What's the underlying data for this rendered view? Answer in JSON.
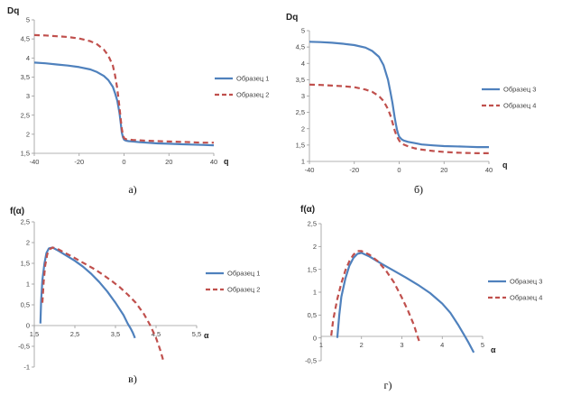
{
  "panels": [
    {
      "caption": "а)",
      "chart_data": {
        "type": "line",
        "ylabel": "Dq",
        "xlabel": "q",
        "xlim": [
          -40,
          40
        ],
        "ylim": [
          1.5,
          5
        ],
        "xticks": [
          -40,
          -20,
          0,
          20,
          40
        ],
        "yticks": [
          1.5,
          2,
          2.5,
          3,
          3.5,
          4,
          4.5,
          5
        ],
        "ytick_labels": [
          "1,5",
          "2",
          "2,5",
          "3",
          "3,5",
          "4",
          "4,5",
          "5"
        ],
        "grid": false,
        "legend_position": "right",
        "series": [
          {
            "name": "Образец 1",
            "color": "#4f81bd",
            "dash": "solid",
            "x": [
              -40,
              -35,
              -30,
              -25,
              -20,
              -15,
              -12,
              -9,
              -7,
              -5,
              -4,
              -3,
              -2,
              -1.5,
              -1,
              -0.5,
              0,
              0.5,
              1,
              2,
              4,
              7,
              10,
              15,
              20,
              25,
              30,
              35,
              40
            ],
            "y": [
              3.88,
              3.86,
              3.83,
              3.8,
              3.76,
              3.7,
              3.63,
              3.53,
              3.42,
              3.24,
              3.08,
              2.88,
              2.55,
              2.3,
              2.05,
              1.92,
              1.86,
              1.84,
              1.83,
              1.82,
              1.81,
              1.79,
              1.78,
              1.76,
              1.75,
              1.74,
              1.73,
              1.72,
              1.71
            ]
          },
          {
            "name": "Образец 2",
            "color": "#c0504d",
            "dash": "dashed",
            "x": [
              -40,
              -35,
              -30,
              -25,
              -20,
              -15,
              -12,
              -9,
              -7,
              -5,
              -4,
              -3,
              -2,
              -1.5,
              -1,
              -0.5,
              0,
              0.5,
              1,
              2,
              4,
              7,
              10,
              15,
              20,
              25,
              30,
              35,
              40
            ],
            "y": [
              4.6,
              4.59,
              4.57,
              4.55,
              4.51,
              4.44,
              4.36,
              4.22,
              4.06,
              3.8,
              3.55,
              3.2,
              2.7,
              2.4,
              2.15,
              1.98,
              1.9,
              1.88,
              1.87,
              1.86,
              1.85,
              1.84,
              1.83,
              1.82,
              1.81,
              1.8,
              1.79,
              1.78,
              1.78
            ]
          }
        ]
      }
    },
    {
      "caption": "б)",
      "chart_data": {
        "type": "line",
        "ylabel": "Dq",
        "xlabel": "q",
        "xlim": [
          -40,
          40
        ],
        "ylim": [
          1,
          5
        ],
        "xticks": [
          -40,
          -20,
          0,
          20,
          40
        ],
        "yticks": [
          1,
          1.5,
          2,
          2.5,
          3,
          3.5,
          4,
          4.5,
          5
        ],
        "ytick_labels": [
          "1",
          "1,5",
          "2",
          "2,5",
          "3",
          "3,5",
          "4",
          "4,5",
          "5"
        ],
        "grid": false,
        "legend_position": "right",
        "series": [
          {
            "name": "Образец 3",
            "color": "#4f81bd",
            "dash": "solid",
            "x": [
              -40,
              -35,
              -30,
              -25,
              -20,
              -15,
              -12,
              -9,
              -7,
              -5,
              -4,
              -3,
              -2,
              -1.5,
              -1,
              -0.5,
              0,
              0.5,
              1,
              2,
              4,
              7,
              10,
              15,
              20,
              25,
              30,
              35,
              40
            ],
            "y": [
              4.66,
              4.65,
              4.63,
              4.6,
              4.56,
              4.48,
              4.38,
              4.2,
              3.95,
              3.5,
              3.15,
              2.8,
              2.35,
              2.15,
              1.98,
              1.85,
              1.76,
              1.72,
              1.68,
              1.64,
              1.6,
              1.56,
              1.52,
              1.49,
              1.47,
              1.46,
              1.45,
              1.44,
              1.44
            ]
          },
          {
            "name": "Образец 4",
            "color": "#c0504d",
            "dash": "dashed",
            "x": [
              -40,
              -35,
              -30,
              -25,
              -20,
              -15,
              -12,
              -9,
              -7,
              -5,
              -4,
              -3,
              -2,
              -1.5,
              -1,
              -0.5,
              0,
              0.5,
              1,
              2,
              4,
              7,
              10,
              15,
              20,
              25,
              30,
              35,
              40
            ],
            "y": [
              3.35,
              3.34,
              3.32,
              3.3,
              3.27,
              3.2,
              3.13,
              3.0,
              2.85,
              2.6,
              2.42,
              2.2,
              1.95,
              1.85,
              1.77,
              1.7,
              1.64,
              1.6,
              1.57,
              1.52,
              1.46,
              1.4,
              1.36,
              1.32,
              1.29,
              1.27,
              1.26,
              1.25,
              1.25
            ]
          }
        ]
      }
    },
    {
      "caption": "в)",
      "chart_data": {
        "type": "line",
        "ylabel": "f(α)",
        "xlabel": "α",
        "xlim": [
          1.5,
          5.5
        ],
        "ylim": [
          -1,
          2.5
        ],
        "xticks": [
          1.5,
          2.5,
          3.5,
          4.5,
          5.5
        ],
        "xtick_labels": [
          "1,5",
          "2,5",
          "3,5",
          "4,5",
          "5,5"
        ],
        "yticks": [
          -1,
          -0.5,
          0,
          0.5,
          1,
          1.5,
          2,
          2.5
        ],
        "ytick_labels": [
          "-1",
          "-0,5",
          "0",
          "0,5",
          "1",
          "1,5",
          "2",
          "2,5"
        ],
        "grid": false,
        "legend_position": "right",
        "series": [
          {
            "name": "Образец 1",
            "color": "#4f81bd",
            "dash": "solid",
            "x": [
              1.65,
              1.67,
              1.7,
              1.75,
              1.8,
              1.86,
              1.95,
              2.1,
              2.3,
              2.5,
              2.7,
              2.9,
              3.1,
              3.3,
              3.5,
              3.7,
              3.8,
              3.88,
              3.93,
              3.96,
              3.98
            ],
            "y": [
              0.05,
              0.6,
              1.1,
              1.5,
              1.75,
              1.86,
              1.88,
              1.8,
              1.68,
              1.56,
              1.42,
              1.25,
              1.05,
              0.82,
              0.55,
              0.25,
              0.05,
              -0.08,
              -0.18,
              -0.25,
              -0.3
            ]
          },
          {
            "name": "Образец 2",
            "color": "#c0504d",
            "dash": "dashed",
            "x": [
              1.7,
              1.73,
              1.77,
              1.82,
              1.88,
              1.95,
              2.05,
              2.2,
              2.4,
              2.6,
              2.8,
              3.0,
              3.2,
              3.4,
              3.6,
              3.8,
              4.0,
              4.2,
              4.35,
              4.5,
              4.6,
              4.68
            ],
            "y": [
              0.55,
              1.05,
              1.45,
              1.72,
              1.84,
              1.88,
              1.86,
              1.78,
              1.68,
              1.57,
              1.46,
              1.35,
              1.22,
              1.08,
              0.93,
              0.75,
              0.55,
              0.28,
              0.02,
              -0.3,
              -0.58,
              -0.85
            ]
          }
        ]
      }
    },
    {
      "caption": "г)",
      "chart_data": {
        "type": "line",
        "ylabel": "f(α)",
        "xlabel": "α",
        "xlim": [
          1,
          5
        ],
        "ylim": [
          -0.5,
          2.5
        ],
        "xticks": [
          1,
          2,
          3,
          4,
          5
        ],
        "yticks": [
          -0.5,
          0,
          0.5,
          1,
          1.5,
          2,
          2.5
        ],
        "ytick_labels": [
          "-0,5",
          "0",
          "0,5",
          "1",
          "1,5",
          "2",
          "2,5"
        ],
        "grid": false,
        "legend_position": "right",
        "series": [
          {
            "name": "Образец 3",
            "color": "#4f81bd",
            "dash": "solid",
            "x": [
              1.4,
              1.45,
              1.5,
              1.6,
              1.7,
              1.8,
              1.9,
              2.0,
              2.2,
              2.5,
              2.8,
              3.1,
              3.4,
              3.7,
              4.0,
              4.2,
              4.4,
              4.55,
              4.65,
              4.72,
              4.78
            ],
            "y": [
              0.0,
              0.5,
              0.9,
              1.3,
              1.58,
              1.75,
              1.84,
              1.86,
              1.78,
              1.62,
              1.47,
              1.32,
              1.16,
              0.98,
              0.75,
              0.55,
              0.28,
              0.05,
              -0.1,
              -0.22,
              -0.32
            ]
          },
          {
            "name": "Образец 4",
            "color": "#c0504d",
            "dash": "dashed",
            "x": [
              1.25,
              1.3,
              1.4,
              1.5,
              1.6,
              1.7,
              1.8,
              1.9,
              2.0,
              2.2,
              2.4,
              2.6,
              2.8,
              3.0,
              3.15,
              3.3,
              3.4,
              3.45
            ],
            "y": [
              0.05,
              0.4,
              0.85,
              1.2,
              1.48,
              1.68,
              1.82,
              1.9,
              1.9,
              1.82,
              1.68,
              1.48,
              1.22,
              0.88,
              0.6,
              0.28,
              0.0,
              -0.12
            ]
          }
        ]
      }
    }
  ]
}
